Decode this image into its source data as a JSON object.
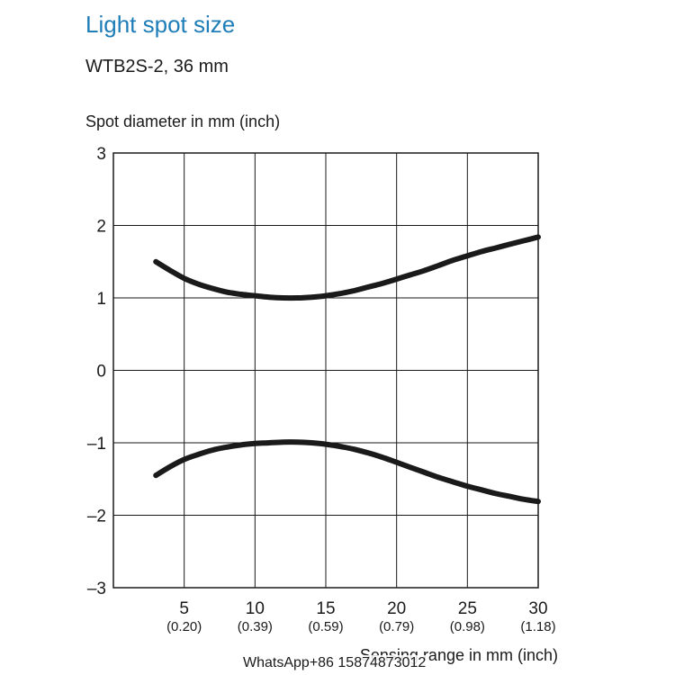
{
  "header": {
    "title": "Light spot size",
    "subtitle": "WTB2S-2, 36 mm"
  },
  "watermark": "WhatsApp+86 15874873012",
  "chart_data": {
    "type": "line",
    "title": "Light spot size",
    "subtitle": "WTB2S-2, 36 mm",
    "ylabel": "Spot diameter in mm (inch)",
    "xlabel": "Sensing range in mm (inch)",
    "xlim": [
      0,
      30
    ],
    "ylim": [
      -3,
      3
    ],
    "grid": true,
    "x_ticks": [
      {
        "value": 5,
        "label": "5",
        "sub": "(0.20)"
      },
      {
        "value": 10,
        "label": "10",
        "sub": "(0.39)"
      },
      {
        "value": 15,
        "label": "15",
        "sub": "(0.59)"
      },
      {
        "value": 20,
        "label": "20",
        "sub": "(0.79)"
      },
      {
        "value": 25,
        "label": "25",
        "sub": "(0.98)"
      },
      {
        "value": 30,
        "label": "30",
        "sub": "(1.18)"
      }
    ],
    "y_ticks": [
      {
        "value": 3,
        "label": "3"
      },
      {
        "value": 2,
        "label": "2"
      },
      {
        "value": 1,
        "label": "1"
      },
      {
        "value": 0,
        "label": "0"
      },
      {
        "value": -1,
        "label": "–1"
      },
      {
        "value": -2,
        "label": "–2"
      },
      {
        "value": -3,
        "label": "–3"
      }
    ],
    "series": [
      {
        "x": [
          3,
          4,
          5,
          6,
          7,
          8,
          9,
          10,
          11,
          12,
          13,
          14,
          15,
          16,
          17,
          18,
          19,
          20,
          21,
          22,
          23,
          24,
          25,
          26,
          27,
          28,
          29,
          30
        ],
        "y": [
          1.5,
          1.38,
          1.27,
          1.19,
          1.13,
          1.08,
          1.05,
          1.03,
          1.01,
          1.0,
          1.0,
          1.01,
          1.03,
          1.06,
          1.1,
          1.15,
          1.2,
          1.26,
          1.32,
          1.38,
          1.45,
          1.52,
          1.58,
          1.64,
          1.69,
          1.74,
          1.79,
          1.84
        ]
      },
      {
        "x": [
          3,
          4,
          5,
          6,
          7,
          8,
          9,
          10,
          11,
          12,
          13,
          14,
          15,
          16,
          17,
          18,
          19,
          20,
          21,
          22,
          23,
          24,
          25,
          26,
          27,
          28,
          29,
          30
        ],
        "y": [
          -1.45,
          -1.33,
          -1.23,
          -1.16,
          -1.1,
          -1.06,
          -1.03,
          -1.01,
          -1.0,
          -0.99,
          -0.99,
          -1.0,
          -1.02,
          -1.05,
          -1.09,
          -1.14,
          -1.2,
          -1.27,
          -1.34,
          -1.41,
          -1.48,
          -1.54,
          -1.6,
          -1.65,
          -1.7,
          -1.74,
          -1.78,
          -1.81
        ]
      }
    ],
    "line_color": "#1a1a1a",
    "grid_color": "#1a1a1a"
  }
}
